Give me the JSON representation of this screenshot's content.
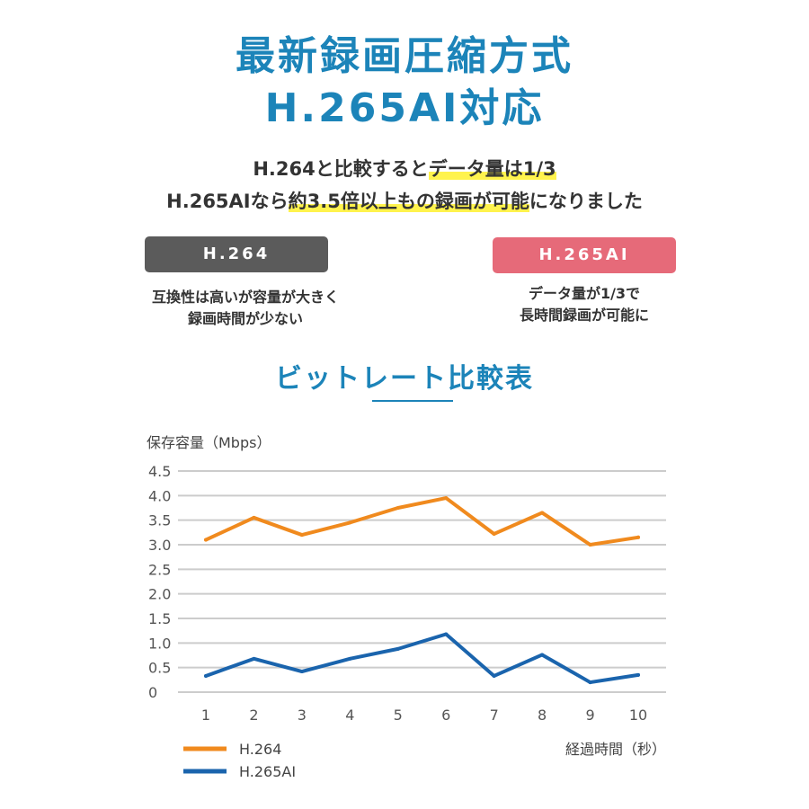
{
  "header": {
    "title_line1": "最新録画圧縮方式",
    "title_line2": "H.265AI対応"
  },
  "intro": {
    "line1_plain": "H.264と比較すると",
    "line1_highlight": "データ量は1/3",
    "line2_plain1": "H.265AIなら",
    "line2_highlight": "約3.5倍以上もの録画が可能",
    "line2_plain2": "になりました"
  },
  "comparison": {
    "h264": {
      "label": "H.264",
      "desc_line1": "互換性は高いが容量が大きく",
      "desc_line2": "録画時間が少ない",
      "color": "#5b5b5b"
    },
    "h265": {
      "label": "H.265AI",
      "desc_line1": "データ量が1/3で",
      "desc_line2": "長時間録画が可能に",
      "color": "#e66a79"
    }
  },
  "section_title": "ビットレート比較表",
  "chart_data": {
    "type": "line",
    "ylabel": "保存容量（Mbps）",
    "xlabel": "経過時間（秒）",
    "x": [
      1,
      2,
      3,
      4,
      5,
      6,
      7,
      8,
      9,
      10
    ],
    "y_ticks": [
      "4.5",
      "4.0",
      "3.5",
      "3.0",
      "2.5",
      "2.0",
      "1.5",
      "1.0",
      "0.5",
      "0"
    ],
    "ylim": [
      0,
      4.5
    ],
    "grid": true,
    "legend_position": "bottom-left",
    "series": [
      {
        "name": "H.264",
        "color": "#f08a1e",
        "values": [
          3.1,
          3.55,
          3.2,
          3.45,
          3.75,
          3.95,
          3.22,
          3.65,
          3.0,
          3.15
        ]
      },
      {
        "name": "H.265AI",
        "color": "#1a64ad",
        "values": [
          0.33,
          0.68,
          0.42,
          0.68,
          0.88,
          1.18,
          0.33,
          0.76,
          0.2,
          0.35
        ]
      }
    ]
  }
}
